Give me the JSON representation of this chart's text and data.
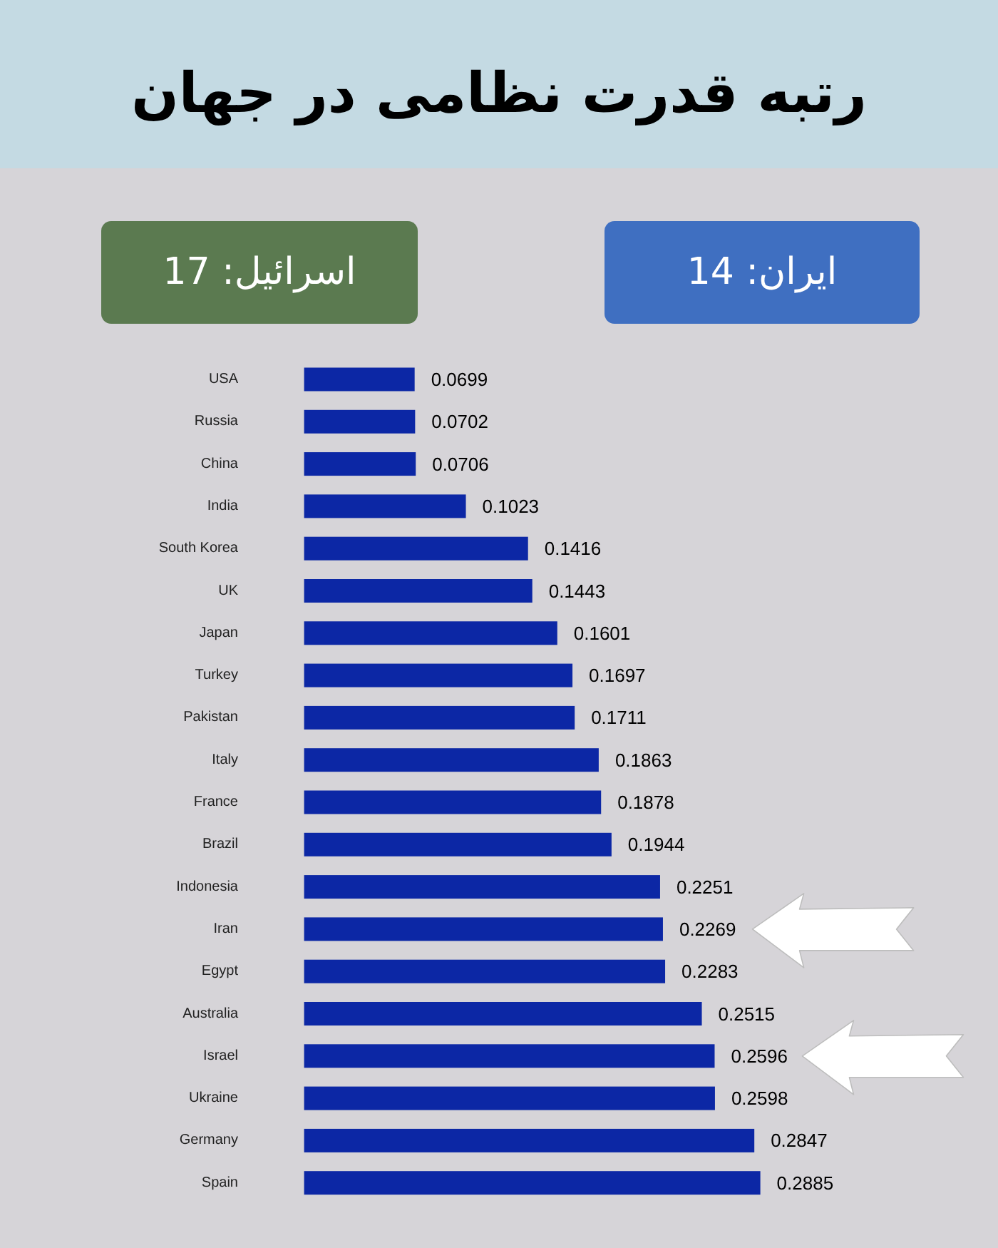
{
  "chart_data": {
    "type": "bar",
    "orientation": "horizontal",
    "title": "رتبه قدرت نظامی در جهان",
    "annotations": [
      "ایران: 14",
      "اسرائیل: 17"
    ],
    "categories": [
      "USA",
      "Russia",
      "China",
      "India",
      "South Korea",
      "UK",
      "Japan",
      "Turkey",
      "Pakistan",
      "Italy",
      "France",
      "Brazil",
      "Indonesia",
      "Iran",
      "Egypt",
      "Australia",
      "Israel",
      "Ukraine",
      "Germany",
      "Spain"
    ],
    "values": [
      0.0699,
      0.0702,
      0.0706,
      0.1023,
      0.1416,
      0.1443,
      0.1601,
      0.1697,
      0.1711,
      0.1863,
      0.1878,
      0.1944,
      0.2251,
      0.2269,
      0.2283,
      0.2515,
      0.2596,
      0.2598,
      0.2847,
      0.2885
    ],
    "data_labels": true,
    "color": "#0c27a5"
  }
}
